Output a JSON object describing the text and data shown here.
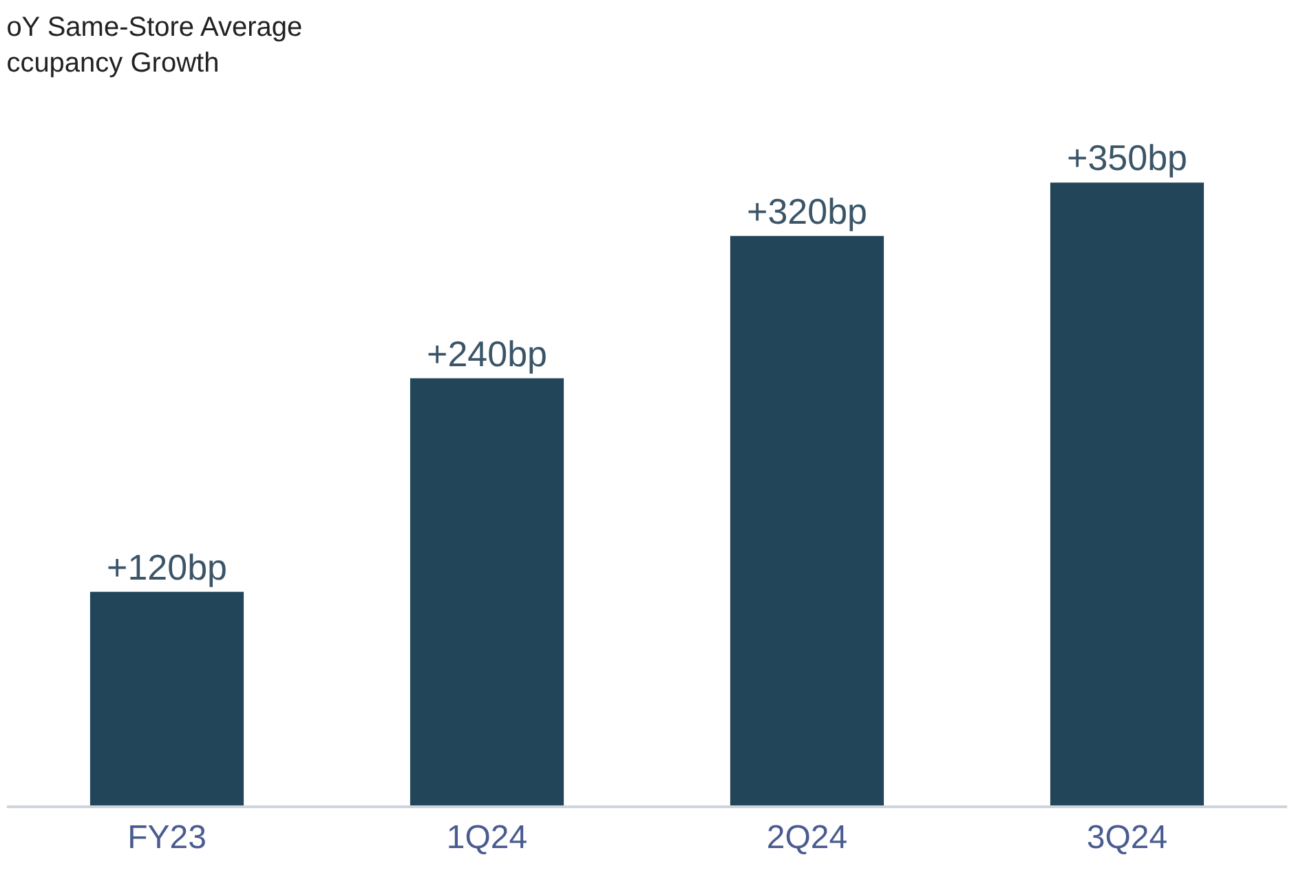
{
  "chart_data": {
    "type": "bar",
    "title": "oY Same-Store Average\nccupancy Growth",
    "categories": [
      "FY23",
      "1Q24",
      "2Q24",
      "3Q24"
    ],
    "values": [
      120,
      240,
      320,
      350
    ],
    "value_labels": [
      "+120bp",
      "+240bp",
      "+320bp",
      "+350bp"
    ],
    "color": "#23455a",
    "legend": false
  }
}
